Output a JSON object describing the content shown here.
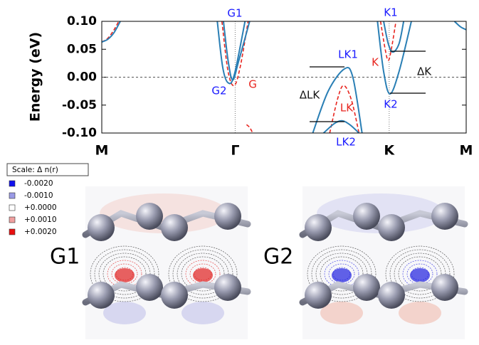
{
  "chart_data": {
    "type": "line",
    "ylabel": "Energy (eV)",
    "xlim": [
      0,
      2.366
    ],
    "xticks": [
      {
        "value": 0,
        "label": "M"
      },
      {
        "value": 0.866,
        "label": "Γ"
      },
      {
        "value": 1.866,
        "label": "K"
      },
      {
        "value": 2.366,
        "label": "M"
      }
    ],
    "ylim": [
      -0.1,
      0.1
    ],
    "yticks": [
      {
        "value": -0.1,
        "label": "-0.10"
      },
      -0.05,
      {
        "value": 0,
        "label": "0.00"
      },
      0.05,
      {
        "value": 0.1,
        "label": "0.10"
      }
    ],
    "series": [
      {
        "color": "#e8251f",
        "dash": true,
        "x": [
          0,
          0.04,
          0.08,
          0.11
        ],
        "values": [
          0.063,
          0.07,
          0.085,
          0.1
        ]
      },
      {
        "color": "#2a7fb5",
        "dash": false,
        "x": [
          0,
          0.04,
          0.08,
          0.12
        ],
        "values": [
          0.063,
          0.068,
          0.08,
          0.1
        ]
      },
      {
        "color": "#e8251f",
        "dash": true,
        "x": [
          0.78,
          0.82,
          0.86,
          0.9,
          0.95
        ],
        "values": [
          0.1,
          0.01,
          -0.015,
          0.02,
          0.1
        ]
      },
      {
        "color": "#2a7fb5",
        "dash": false,
        "x": [
          0.75,
          0.785,
          0.82,
          0.86,
          0.93
        ],
        "values": [
          0.1,
          0.018,
          -0.01,
          0.004,
          0.1
        ]
      },
      {
        "color": "#2a7fb5",
        "dash": false,
        "x": [
          0.79,
          0.82,
          0.85,
          0.89,
          0.96
        ],
        "values": [
          0.1,
          0.03,
          -0.005,
          0.03,
          0.1
        ]
      },
      {
        "color": "#e8251f",
        "dash": true,
        "x": [
          0.94,
          0.96,
          0.98
        ],
        "values": [
          -0.085,
          -0.09,
          -0.1
        ]
      },
      {
        "color": "#e8251f",
        "dash": true,
        "x": [
          1.48,
          1.53,
          1.57,
          1.62,
          1.67
        ],
        "values": [
          -0.1,
          -0.04,
          -0.015,
          -0.04,
          -0.1
        ]
      },
      {
        "color": "#2a7fb5",
        "dash": false,
        "x": [
          1.37,
          1.47,
          1.576,
          1.63,
          1.69
        ],
        "values": [
          -0.1,
          -0.025,
          0.015,
          0.0,
          -0.1
        ]
      },
      {
        "color": "#2a7fb5",
        "dash": false,
        "x": [
          1.44,
          1.51,
          1.56,
          1.61,
          1.67
        ],
        "values": [
          -0.1,
          -0.083,
          -0.078,
          -0.085,
          -0.1
        ]
      },
      {
        "color": "#e8251f",
        "dash": true,
        "x": [
          1.81,
          1.84,
          1.86,
          1.88,
          1.91
        ],
        "values": [
          0.1,
          0.05,
          0.03,
          0.05,
          0.1
        ]
      },
      {
        "color": "#2a7fb5",
        "dash": false,
        "x": [
          1.79,
          1.83,
          1.871,
          1.93,
          2.01
        ],
        "values": [
          0.1,
          0.01,
          -0.03,
          0.01,
          0.1
        ]
      },
      {
        "color": "#2a7fb5",
        "dash": false,
        "x": [
          1.83,
          1.86,
          1.89,
          1.93,
          1.96
        ],
        "values": [
          0.1,
          0.06,
          0.045,
          0.06,
          0.1
        ]
      },
      {
        "color": "#2a7fb5",
        "dash": false,
        "x": [
          2.29,
          2.33,
          2.366
        ],
        "values": [
          0.1,
          0.09,
          0.085
        ]
      }
    ],
    "annotations": [
      {
        "text": "G1",
        "color": "#1a1aff"
      },
      {
        "text": "G2",
        "color": "#1a1aff"
      },
      {
        "text": "G",
        "color": "#e8251f"
      },
      {
        "text": "LK1",
        "color": "#1a1aff"
      },
      {
        "text": "LK",
        "color": "#e8251f"
      },
      {
        "text": "LK2",
        "color": "#1a1aff"
      },
      {
        "text": "ΔLK",
        "color": "#111111"
      },
      {
        "text": "K1",
        "color": "#1a1aff"
      },
      {
        "text": "K",
        "color": "#e8251f"
      },
      {
        "text": "K2",
        "color": "#1a1aff"
      },
      {
        "text": "ΔK",
        "color": "#111111"
      }
    ]
  },
  "scale": {
    "title": "Scale:  Δ n(r)",
    "entries": [
      {
        "label": "-0.0020",
        "color": "#1010f0"
      },
      {
        "label": "-0.0010",
        "color": "#9a9ae6"
      },
      {
        "label": "+0.0000",
        "color": "#ffffff"
      },
      {
        "label": "+0.0010",
        "color": "#f0a0a0"
      },
      {
        "label": "+0.0020",
        "color": "#e81010"
      }
    ]
  },
  "panels": [
    {
      "label": "G1",
      "tone": "#e02020"
    },
    {
      "label": "G2",
      "tone": "#2020e0"
    }
  ]
}
